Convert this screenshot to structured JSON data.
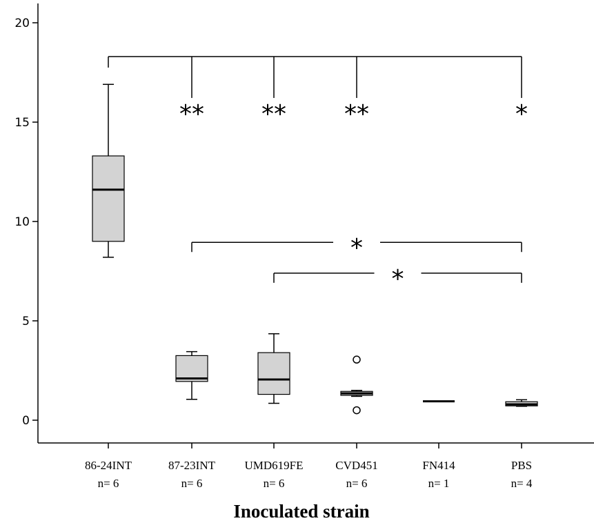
{
  "chart_data": {
    "type": "boxplot",
    "xlabel": "Inoculated strain",
    "ylabel": "",
    "ylim": [
      -1.1,
      21.0
    ],
    "yticks": [
      0,
      5,
      10,
      15,
      20
    ],
    "grid": false,
    "categories": [
      {
        "name": "86-24INT",
        "n_label": "n= 6",
        "min": 8.2,
        "q1": 9.0,
        "median": 11.6,
        "q3": 13.3,
        "max": 16.9,
        "outliers": []
      },
      {
        "name": "87-23INT",
        "n_label": "n= 6",
        "min": 1.05,
        "q1": 1.95,
        "median": 2.1,
        "q3": 3.25,
        "max": 3.45,
        "outliers": []
      },
      {
        "name": "UMD619FE",
        "n_label": "n= 6",
        "min": 0.85,
        "q1": 1.3,
        "median": 2.05,
        "q3": 3.4,
        "max": 4.35,
        "outliers": []
      },
      {
        "name": "CVD451",
        "n_label": "n= 6",
        "min": 1.2,
        "q1": 1.25,
        "median": 1.35,
        "q3": 1.45,
        "max": 1.5,
        "outliers": [
          3.05,
          0.5
        ]
      },
      {
        "name": "FN414",
        "n_label": "n= 1",
        "min": 0.95,
        "q1": 0.95,
        "median": 0.95,
        "q3": 0.95,
        "max": 0.95,
        "outliers": []
      },
      {
        "name": "PBS",
        "n_label": "n= 4",
        "min": 0.7,
        "q1": 0.72,
        "median": 0.8,
        "q3": 0.93,
        "max": 1.03,
        "outliers": []
      }
    ],
    "significance": [
      {
        "from": 0,
        "to": [
          1,
          2,
          3,
          5
        ],
        "y": 18.3,
        "labels": [
          "**",
          "**",
          "**",
          "*"
        ]
      },
      {
        "from": 1,
        "to": [
          5
        ],
        "y": 8.95,
        "labels": [
          "*"
        ]
      },
      {
        "from": 2,
        "to": [
          5
        ],
        "y": 7.4,
        "labels": [
          "*"
        ]
      }
    ]
  }
}
